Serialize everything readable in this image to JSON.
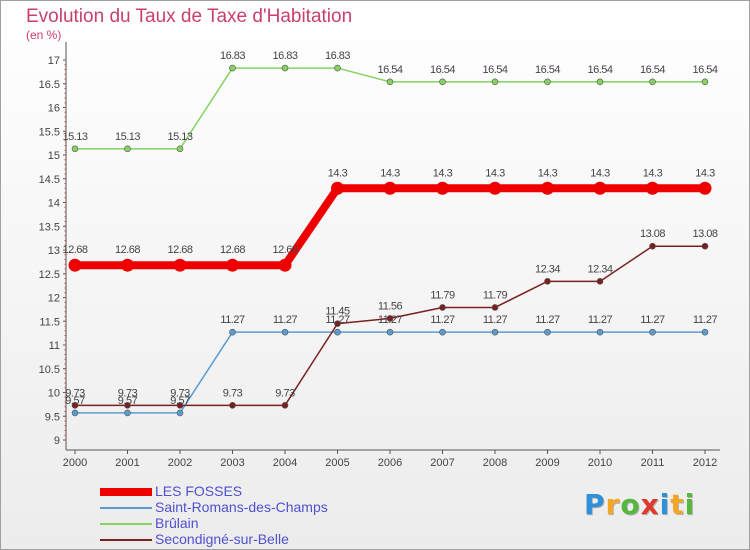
{
  "header": {
    "title": "Evolution du Taux de Taxe d'Habitation",
    "unit": "(en %)"
  },
  "chart_data": {
    "type": "line",
    "x": [
      "2000",
      "2001",
      "2002",
      "2003",
      "2004",
      "2005",
      "2006",
      "2007",
      "2008",
      "2009",
      "2010",
      "2011",
      "2012"
    ],
    "ylim": [
      9,
      17
    ],
    "yticks": [
      "9",
      "9.5",
      "10",
      "10.5",
      "11",
      "11.5",
      "12",
      "12.5",
      "13",
      "13.5",
      "14",
      "14.5",
      "15",
      "15.5",
      "16",
      "16.5",
      "17"
    ],
    "grid": false,
    "legend_position": "bottom-left",
    "series": [
      {
        "name": "LES FOSSES",
        "color": "#ee0000",
        "values": [
          12.68,
          12.68,
          12.68,
          12.68,
          12.68,
          14.3,
          14.3,
          14.3,
          14.3,
          14.3,
          14.3,
          14.3,
          14.3
        ],
        "labels": [
          "12.68",
          "12.68",
          "12.68",
          "12.68",
          "12.68",
          "14.3",
          "14.3",
          "14.3",
          "14.3",
          "14.3",
          "14.3",
          "14.3",
          "14.3"
        ]
      },
      {
        "name": "Saint-Romans-des-Champs",
        "color": "#5a9bd0",
        "values": [
          9.57,
          9.57,
          9.57,
          11.27,
          11.27,
          11.27,
          11.27,
          11.27,
          11.27,
          11.27,
          11.27,
          11.27,
          11.27
        ],
        "labels": [
          "9.57",
          "9.57",
          "9.57",
          "11.27",
          "11.27",
          "11.27",
          "11.27",
          "11.27",
          "11.27",
          "11.27",
          "11.27",
          "11.27",
          "11.27"
        ]
      },
      {
        "name": "Brûlain",
        "color": "#86d160",
        "values": [
          15.13,
          15.13,
          15.13,
          16.83,
          16.83,
          16.83,
          16.54,
          16.54,
          16.54,
          16.54,
          16.54,
          16.54,
          16.54
        ],
        "labels": [
          "15.13",
          "15.13",
          "15.13",
          "16.83",
          "16.83",
          "16.83",
          "16.54",
          "16.54",
          "16.54",
          "16.54",
          "16.54",
          "16.54",
          "16.54"
        ]
      },
      {
        "name": "Secondigné-sur-Belle",
        "color": "#7a2020",
        "values": [
          9.73,
          9.73,
          9.73,
          9.73,
          9.73,
          11.45,
          11.56,
          11.79,
          11.79,
          12.34,
          12.34,
          13.08,
          13.08
        ],
        "labels": [
          "9.73",
          "9.73",
          "9.73",
          "9.73",
          "9.73",
          "11.45",
          "11.56",
          "11.79",
          "11.79",
          "12.34",
          "12.34",
          "13.08",
          "13.08"
        ]
      }
    ]
  },
  "legend": {
    "items": [
      {
        "label": "LES FOSSES",
        "color": "#ee0000",
        "thickness": 8
      },
      {
        "label": "Saint-Romans-des-Champs",
        "color": "#5a9bd0",
        "thickness": 2
      },
      {
        "label": "Brûlain",
        "color": "#86d160",
        "thickness": 2
      },
      {
        "label": "Secondigné-sur-Belle",
        "color": "#7a2020",
        "thickness": 2
      }
    ]
  },
  "logo": {
    "letters": [
      "P",
      "r",
      "o",
      "x",
      "i",
      "t",
      "i"
    ],
    "colors": [
      "#2f8fd8",
      "#f5a623",
      "#55b83c",
      "#e0392b",
      "#2f8fd8",
      "#f5a623",
      "#55b83c"
    ]
  }
}
